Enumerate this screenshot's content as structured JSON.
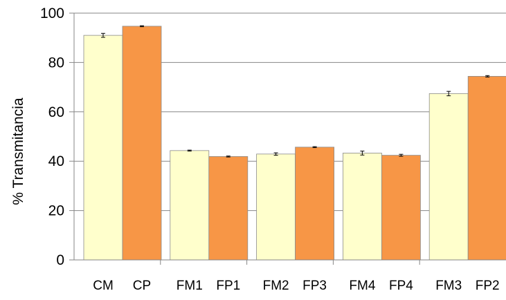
{
  "chart_data": {
    "type": "bar",
    "ylabel": "% Transmitancia",
    "xlabel": "",
    "ylim": [
      0,
      100
    ],
    "yticks": [
      0,
      20,
      40,
      60,
      80,
      100
    ],
    "grid": true,
    "colors": {
      "first_bar": "#FFFFCC",
      "second_bar": "#F79646",
      "gridline": "#868686",
      "error_bar": "#000000"
    },
    "groups": [
      {
        "bars": [
          {
            "label": "CM",
            "value": 91.0,
            "error": 0.8,
            "color_key": "first_bar"
          },
          {
            "label": "CP",
            "value": 94.7,
            "error": 0.2,
            "color_key": "second_bar"
          }
        ]
      },
      {
        "bars": [
          {
            "label": "FM1",
            "value": 44.3,
            "error": 0.2,
            "color_key": "first_bar"
          },
          {
            "label": "FP1",
            "value": 41.9,
            "error": 0.2,
            "color_key": "second_bar"
          }
        ]
      },
      {
        "bars": [
          {
            "label": "FM2",
            "value": 42.9,
            "error": 0.5,
            "color_key": "first_bar"
          },
          {
            "label": "FP3",
            "value": 45.7,
            "error": 0.2,
            "color_key": "second_bar"
          }
        ]
      },
      {
        "bars": [
          {
            "label": "FM4",
            "value": 43.3,
            "error": 0.8,
            "color_key": "first_bar"
          },
          {
            "label": "FP4",
            "value": 42.4,
            "error": 0.4,
            "color_key": "second_bar"
          }
        ]
      },
      {
        "bars": [
          {
            "label": "FM3",
            "value": 67.4,
            "error": 0.9,
            "color_key": "first_bar"
          },
          {
            "label": "FP2",
            "value": 74.4,
            "error": 0.3,
            "color_key": "second_bar"
          }
        ]
      }
    ]
  }
}
